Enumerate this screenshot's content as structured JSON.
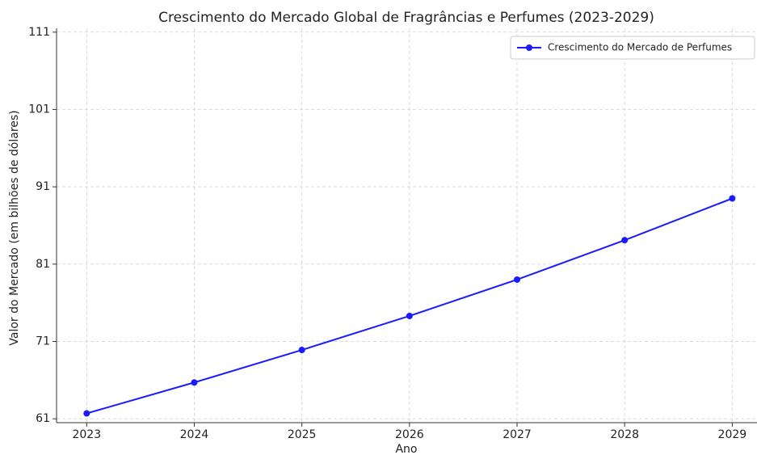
{
  "chart_data": {
    "type": "line",
    "title": "Crescimento do Mercado Global de Fragrâncias e Perfumes (2023-2029)",
    "x_label": "Ano",
    "y_label": "Valor do Mercado (em bilhões de dólares)",
    "x": [
      2023,
      2024,
      2025,
      2026,
      2027,
      2028,
      2029
    ],
    "series": [
      {
        "name": "Crescimento do Mercado de Perfumes",
        "color": "#1a1aff",
        "values": [
          61.7,
          65.7,
          69.9,
          74.3,
          79.0,
          84.1,
          89.5
        ]
      }
    ],
    "xlim": [
      2022.72,
      2029.23
    ],
    "ylim": [
      60.5,
      111.5
    ],
    "xticks": [
      2023,
      2024,
      2025,
      2026,
      2027,
      2028,
      2029
    ],
    "yticks": [
      61,
      71,
      81,
      91,
      101,
      111
    ],
    "grid": true,
    "legend": "upper right"
  }
}
